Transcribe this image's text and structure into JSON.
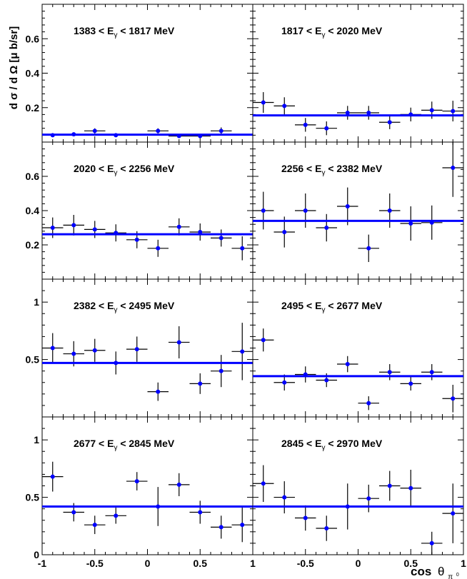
{
  "ylabel": "d σ / d Ω  [μ b/sr]",
  "xlabel": {
    "main": "cos",
    "theta": "θ",
    "sub1": "π",
    "sub2": "0"
  },
  "colors": {
    "points": "#0000ff",
    "fit": "#0000ff",
    "errorbars": "#000000",
    "frame": "#000000"
  },
  "chart_data": [
    {
      "type": "scatter",
      "title": "1383 < E_γ < 1817 MeV",
      "row": 0,
      "col": 0,
      "xlim": [
        -1,
        1
      ],
      "ylim": [
        0,
        0.8
      ],
      "points": [
        {
          "x": -0.9,
          "y": 0.04,
          "err": 0.01
        },
        {
          "x": -0.7,
          "y": 0.045,
          "err": 0.01
        },
        {
          "x": -0.5,
          "y": 0.065,
          "err": 0.015
        },
        {
          "x": -0.3,
          "y": 0.04,
          "err": 0.01
        },
        {
          "x": 0.1,
          "y": 0.065,
          "err": 0.015
        },
        {
          "x": 0.3,
          "y": 0.035,
          "err": 0.01
        },
        {
          "x": 0.5,
          "y": 0.035,
          "err": 0.01
        },
        {
          "x": 0.7,
          "y": 0.065,
          "err": 0.02
        }
      ],
      "fit": 0.043
    },
    {
      "type": "scatter",
      "title": "1817 < E_γ < 2020 MeV",
      "row": 0,
      "col": 1,
      "xlim": [
        -1,
        1
      ],
      "ylim": [
        0,
        0.8
      ],
      "points": [
        {
          "x": -0.9,
          "y": 0.23,
          "err": 0.06
        },
        {
          "x": -0.7,
          "y": 0.21,
          "err": 0.05
        },
        {
          "x": -0.5,
          "y": 0.1,
          "err": 0.04
        },
        {
          "x": -0.3,
          "y": 0.08,
          "err": 0.04
        },
        {
          "x": -0.1,
          "y": 0.17,
          "err": 0.04
        },
        {
          "x": 0.1,
          "y": 0.17,
          "err": 0.04
        },
        {
          "x": 0.3,
          "y": 0.115,
          "err": 0.04
        },
        {
          "x": 0.5,
          "y": 0.16,
          "err": 0.04
        },
        {
          "x": 0.7,
          "y": 0.185,
          "err": 0.05
        },
        {
          "x": 0.9,
          "y": 0.18,
          "err": 0.06
        }
      ],
      "fit": 0.155
    },
    {
      "type": "scatter",
      "title": "2020 < E_γ < 2256 MeV",
      "row": 1,
      "col": 0,
      "xlim": [
        -1,
        1
      ],
      "ylim": [
        0,
        0.8
      ],
      "points": [
        {
          "x": -0.9,
          "y": 0.3,
          "err": 0.06
        },
        {
          "x": -0.7,
          "y": 0.315,
          "err": 0.06
        },
        {
          "x": -0.5,
          "y": 0.29,
          "err": 0.05
        },
        {
          "x": -0.3,
          "y": 0.27,
          "err": 0.05
        },
        {
          "x": -0.1,
          "y": 0.23,
          "err": 0.05
        },
        {
          "x": 0.1,
          "y": 0.18,
          "err": 0.05
        },
        {
          "x": 0.3,
          "y": 0.305,
          "err": 0.05
        },
        {
          "x": 0.5,
          "y": 0.275,
          "err": 0.05
        },
        {
          "x": 0.7,
          "y": 0.24,
          "err": 0.05
        },
        {
          "x": 0.9,
          "y": 0.18,
          "err": 0.07
        }
      ],
      "fit": 0.262
    },
    {
      "type": "scatter",
      "title": "2256 < E_γ < 2382 MeV",
      "row": 1,
      "col": 1,
      "xlim": [
        -1,
        1
      ],
      "ylim": [
        0,
        0.8
      ],
      "points": [
        {
          "x": -0.9,
          "y": 0.4,
          "err": 0.11
        },
        {
          "x": -0.7,
          "y": 0.275,
          "err": 0.09
        },
        {
          "x": -0.5,
          "y": 0.4,
          "err": 0.1
        },
        {
          "x": -0.3,
          "y": 0.3,
          "err": 0.08
        },
        {
          "x": -0.1,
          "y": 0.425,
          "err": 0.11
        },
        {
          "x": 0.1,
          "y": 0.18,
          "err": 0.08
        },
        {
          "x": 0.3,
          "y": 0.4,
          "err": 0.1
        },
        {
          "x": 0.5,
          "y": 0.325,
          "err": 0.1
        },
        {
          "x": 0.7,
          "y": 0.33,
          "err": 0.1
        },
        {
          "x": 0.9,
          "y": 0.65,
          "err": 0.17
        }
      ],
      "fit": 0.34
    },
    {
      "type": "scatter",
      "title": "2382 < E_γ < 2495 MeV",
      "row": 2,
      "col": 0,
      "xlim": [
        -1,
        1
      ],
      "ylim": [
        0,
        1.2
      ],
      "points": [
        {
          "x": -0.9,
          "y": 0.6,
          "err": 0.13
        },
        {
          "x": -0.7,
          "y": 0.55,
          "err": 0.11
        },
        {
          "x": -0.5,
          "y": 0.58,
          "err": 0.1
        },
        {
          "x": -0.3,
          "y": 0.47,
          "err": 0.1
        },
        {
          "x": -0.1,
          "y": 0.59,
          "err": 0.11
        },
        {
          "x": 0.1,
          "y": 0.22,
          "err": 0.08
        },
        {
          "x": 0.3,
          "y": 0.65,
          "err": 0.14
        },
        {
          "x": 0.5,
          "y": 0.29,
          "err": 0.09
        },
        {
          "x": 0.7,
          "y": 0.4,
          "err": 0.14
        },
        {
          "x": 0.9,
          "y": 0.57,
          "err": 0.25
        }
      ],
      "fit": 0.47
    },
    {
      "type": "scatter",
      "title": "2495 < E_γ < 2677 MeV",
      "row": 2,
      "col": 1,
      "xlim": [
        -1,
        1
      ],
      "ylim": [
        0,
        1.2
      ],
      "points": [
        {
          "x": -0.9,
          "y": 0.67,
          "err": 0.1
        },
        {
          "x": -0.7,
          "y": 0.3,
          "err": 0.07
        },
        {
          "x": -0.5,
          "y": 0.37,
          "err": 0.07
        },
        {
          "x": -0.3,
          "y": 0.32,
          "err": 0.06
        },
        {
          "x": -0.1,
          "y": 0.46,
          "err": 0.07
        },
        {
          "x": 0.1,
          "y": 0.12,
          "err": 0.06
        },
        {
          "x": 0.3,
          "y": 0.39,
          "err": 0.07
        },
        {
          "x": 0.5,
          "y": 0.29,
          "err": 0.06
        },
        {
          "x": 0.7,
          "y": 0.39,
          "err": 0.07
        },
        {
          "x": 0.9,
          "y": 0.16,
          "err": 0.12
        }
      ],
      "fit": 0.355
    },
    {
      "type": "scatter",
      "title": "2677 < E_γ < 2845 MeV",
      "row": 3,
      "col": 0,
      "xlim": [
        -1,
        1
      ],
      "ylim": [
        0,
        1.2
      ],
      "points": [
        {
          "x": -0.9,
          "y": 0.68,
          "err": 0.13
        },
        {
          "x": -0.7,
          "y": 0.37,
          "err": 0.08
        },
        {
          "x": -0.5,
          "y": 0.26,
          "err": 0.08
        },
        {
          "x": -0.3,
          "y": 0.34,
          "err": 0.07
        },
        {
          "x": -0.1,
          "y": 0.64,
          "err": 0.08
        },
        {
          "x": 0.1,
          "y": 0.42,
          "err": 0.17
        },
        {
          "x": 0.3,
          "y": 0.61,
          "err": 0.1
        },
        {
          "x": 0.5,
          "y": 0.37,
          "err": 0.1
        },
        {
          "x": 0.7,
          "y": 0.24,
          "err": 0.1
        },
        {
          "x": 0.9,
          "y": 0.26,
          "err": 0.15
        }
      ],
      "fit": 0.42
    },
    {
      "type": "scatter",
      "title": "2845 < E_γ < 2970 MeV",
      "row": 3,
      "col": 1,
      "xlim": [
        -1,
        1
      ],
      "ylim": [
        0,
        1.2
      ],
      "points": [
        {
          "x": -0.9,
          "y": 0.62,
          "err": 0.16
        },
        {
          "x": -0.7,
          "y": 0.5,
          "err": 0.14
        },
        {
          "x": -0.5,
          "y": 0.32,
          "err": 0.11
        },
        {
          "x": -0.3,
          "y": 0.23,
          "err": 0.11
        },
        {
          "x": -0.1,
          "y": 0.42,
          "err": 0.2
        },
        {
          "x": 0.1,
          "y": 0.49,
          "err": 0.12
        },
        {
          "x": 0.3,
          "y": 0.6,
          "err": 0.13
        },
        {
          "x": 0.5,
          "y": 0.58,
          "err": 0.16
        },
        {
          "x": 0.7,
          "y": 0.1,
          "err": 0.1
        },
        {
          "x": 0.9,
          "y": 0.36,
          "err": 0.26
        }
      ],
      "fit": 0.42
    }
  ],
  "yticks": {
    "top": [
      {
        "v": 0.2,
        "label": "0.2"
      },
      {
        "v": 0.4,
        "label": "0.4"
      },
      {
        "v": 0.6,
        "label": "0.6"
      }
    ],
    "bottom": [
      {
        "v": 0.5,
        "label": "0.5"
      },
      {
        "v": 1,
        "label": "1"
      }
    ],
    "bottom_last": [
      {
        "v": 0,
        "label": "0"
      },
      {
        "v": 0.5,
        "label": "0.5"
      },
      {
        "v": 1,
        "label": "1"
      }
    ]
  },
  "xticks": {
    "left": [
      {
        "v": -1,
        "label": "-1"
      },
      {
        "v": -0.5,
        "label": "-0.5"
      },
      {
        "v": 0,
        "label": "0"
      },
      {
        "v": 0.5,
        "label": "0.5"
      },
      {
        "v": 1,
        "label": "1"
      }
    ],
    "right": [
      {
        "v": -0.5,
        "label": "-0.5"
      },
      {
        "v": 0,
        "label": "0"
      },
      {
        "v": 0.5,
        "label": "0.5"
      },
      {
        "v": 1,
        "label": "1"
      }
    ]
  }
}
